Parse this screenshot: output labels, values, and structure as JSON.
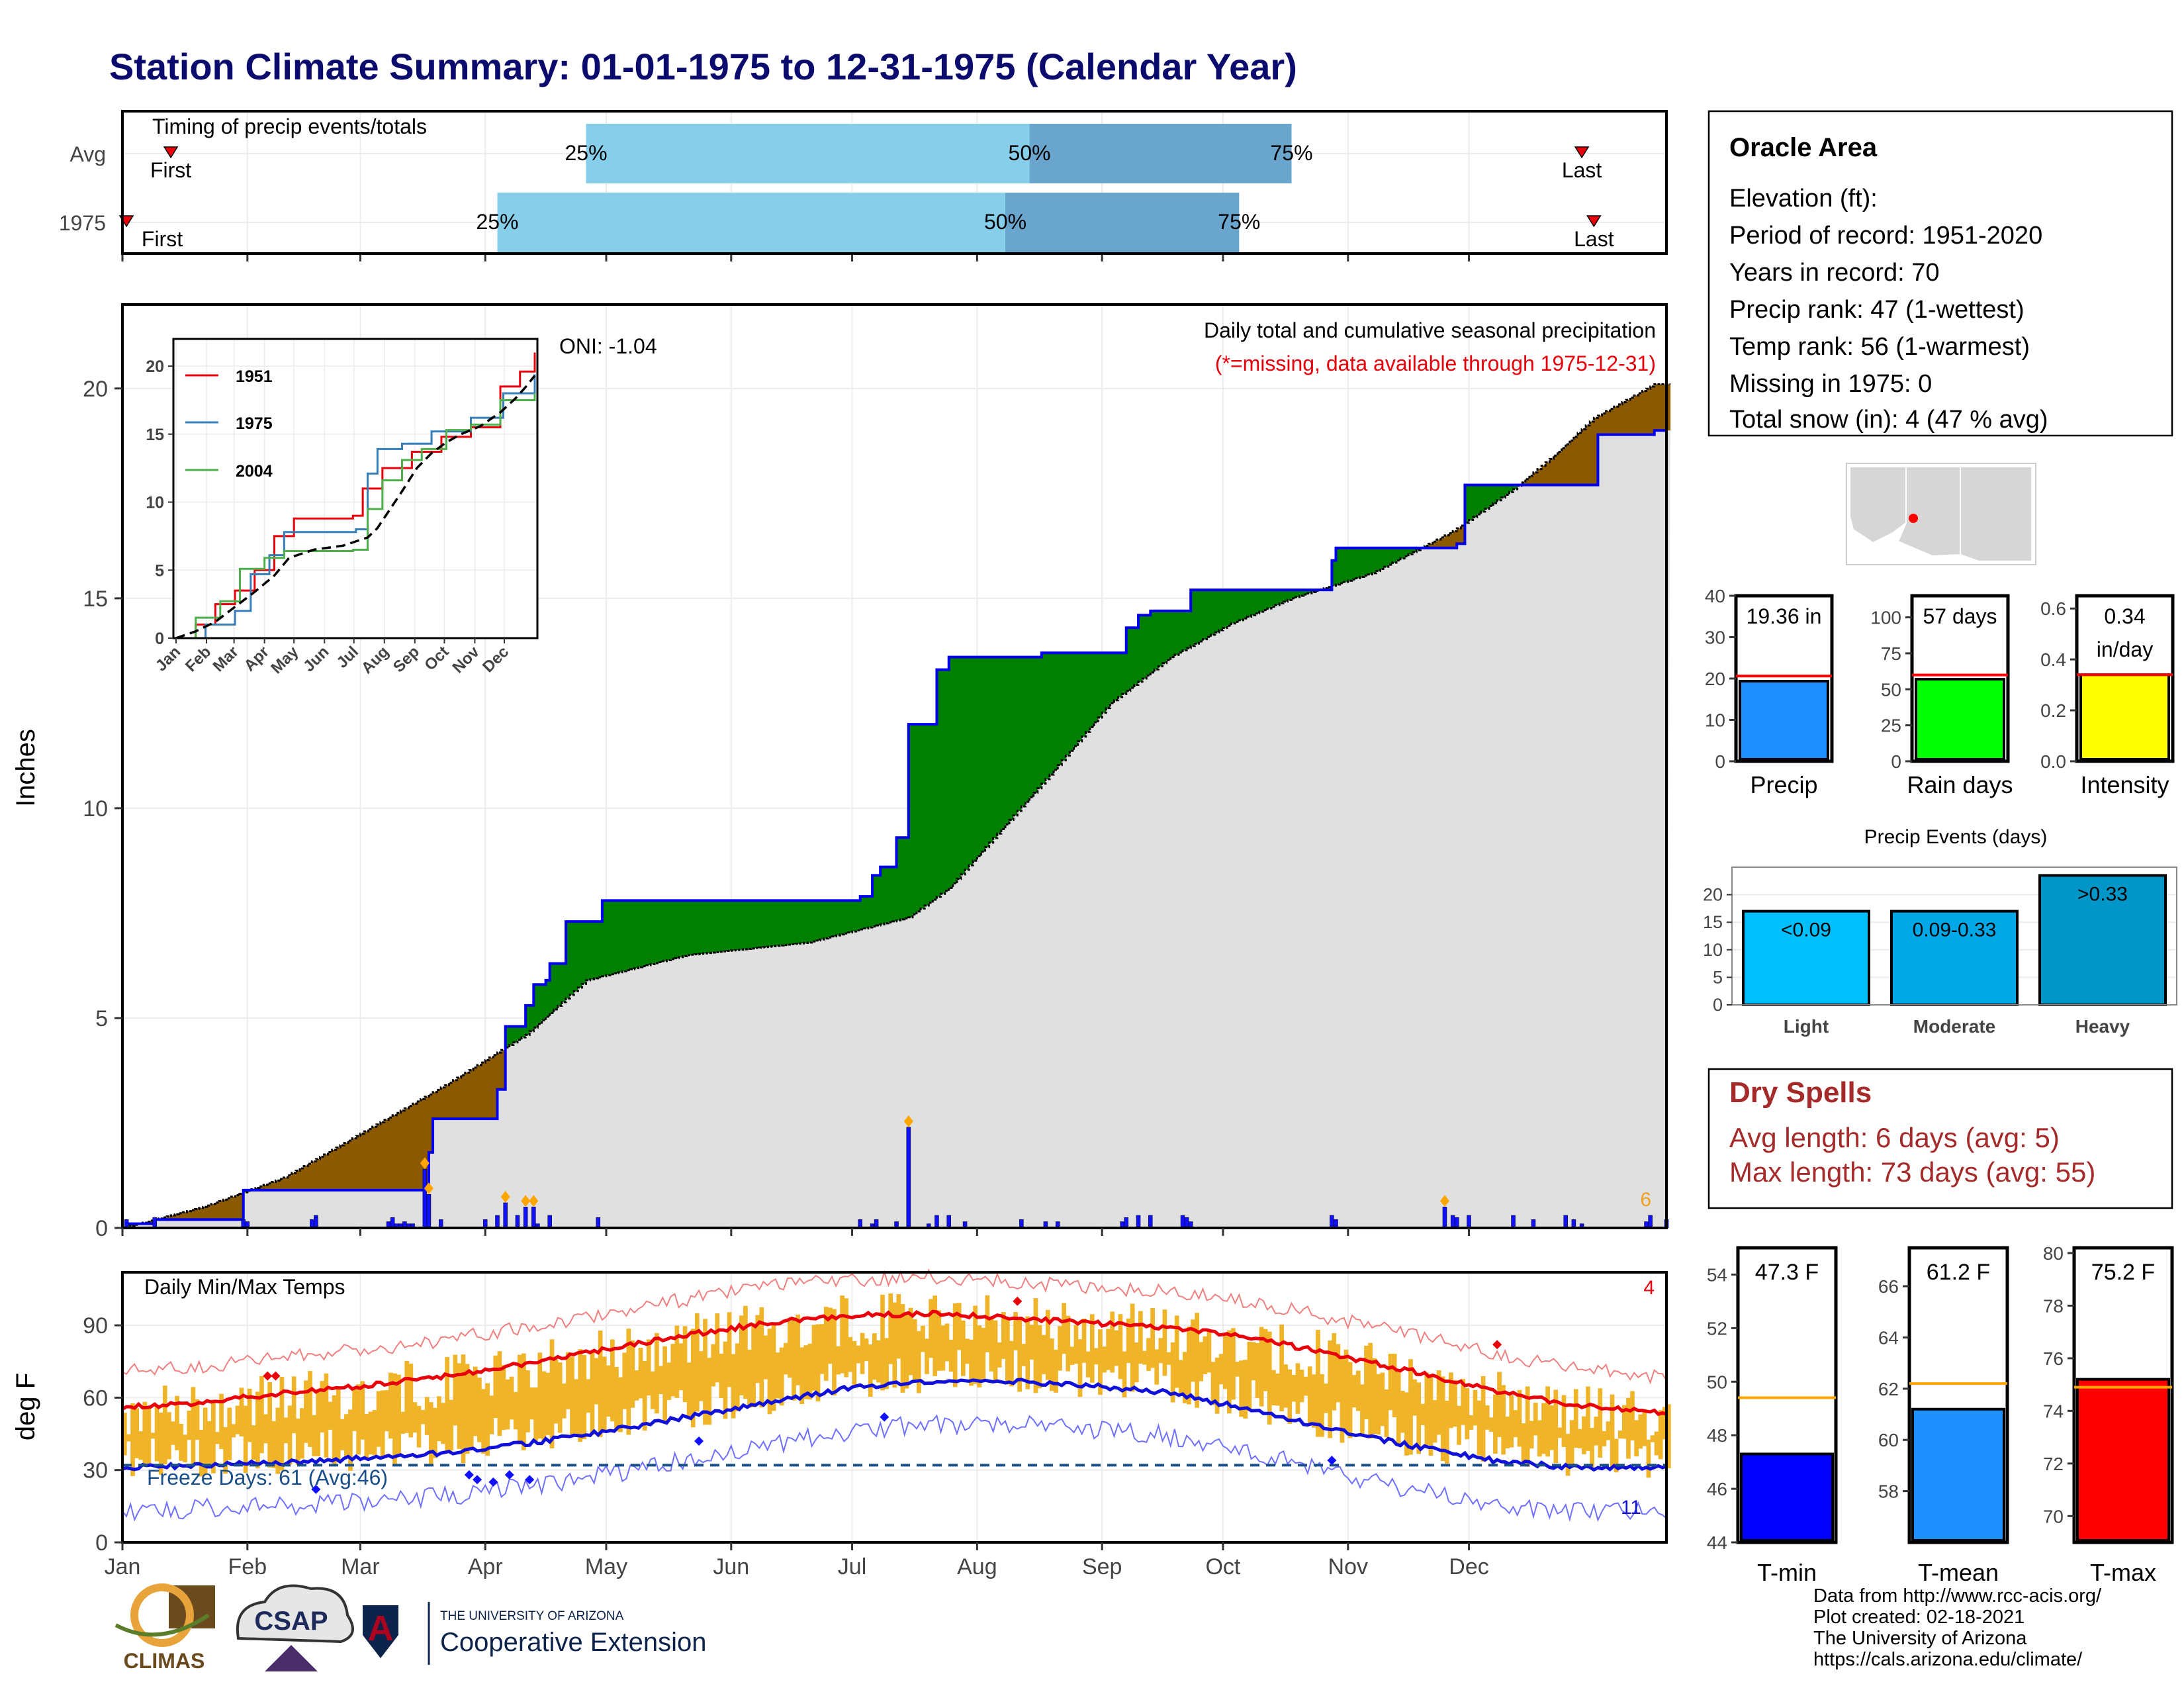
{
  "title": "Station Climate Summary: 01-01-1975 to 12-31-1975 (Calendar Year)",
  "colors": {
    "cumulative_above": "#008000",
    "cumulative_below": "#8b5a00",
    "avg_area": "#e0e0e0",
    "line_1975": "#0000ee",
    "temp_band": "#f0b429",
    "tmax_avg": "#e8000b",
    "tmin_avg": "#1010d8",
    "timing_light": "#87ceeb",
    "timing_dark": "#6aa5cd"
  },
  "timing": {
    "title": "Timing of precip events/totals",
    "rows": [
      {
        "label": "Avg",
        "first_label": "First",
        "last_label": "Last",
        "p25": "25%",
        "p50": "50%",
        "p75": "75%",
        "first_day": 12,
        "p25_day": 115,
        "p50_day": 225,
        "p75_day": 290,
        "last_day": 362
      },
      {
        "label": "1975",
        "first_label": "First",
        "last_label": "Last",
        "p25": "25%",
        "p50": "50%",
        "p75": "75%",
        "first_day": 1,
        "p25_day": 93,
        "p50_day": 219,
        "p75_day": 277,
        "last_day": 365
      }
    ]
  },
  "precip_panel": {
    "ylabel": "Inches",
    "oni": "ONI: -1.04",
    "caption": "Daily total and cumulative seasonal precipitation",
    "missing_note": "(*=missing, data available through 1975-12-31)",
    "corner_count": "6",
    "yticks": [
      "0",
      "5",
      "10",
      "15",
      "20"
    ],
    "ylim": [
      0,
      22
    ]
  },
  "inset": {
    "legend": [
      "1951",
      "1975",
      "2004"
    ],
    "yticks": [
      "0",
      "5",
      "10",
      "15",
      "20"
    ],
    "months": [
      "Jan",
      "Feb",
      "Mar",
      "Apr",
      "May",
      "Jun",
      "Jul",
      "Aug",
      "Sep",
      "Oct",
      "Nov",
      "Dec"
    ]
  },
  "temp_panel": {
    "ylabel": "deg F",
    "title": "Daily Min/Max Temps",
    "freeze": "Freeze Days: 61 (Avg:46)",
    "top_count": "4",
    "bottom_count": "11",
    "yticks": [
      "0",
      "30",
      "60",
      "90"
    ],
    "ylim": [
      0,
      112
    ]
  },
  "months": [
    "Jan",
    "Feb",
    "Mar",
    "Apr",
    "May",
    "Jun",
    "Jul",
    "Aug",
    "Sep",
    "Oct",
    "Nov",
    "Dec"
  ],
  "info": {
    "station": "Oracle Area",
    "lines": [
      "Elevation (ft):",
      "Period of record: 1951-2020",
      "Years in record: 70",
      "Precip rank: 47 (1-wettest)",
      "Temp rank: 56 (1-warmest)",
      "Missing in 1975: 0",
      "Total snow (in): 4 (47 % avg)"
    ]
  },
  "mini_bars": [
    {
      "label": "Precip",
      "value_text": "19.36 in",
      "color": "#1e90ff",
      "value": 19.36,
      "avg": 20.6,
      "ylim": [
        0,
        40
      ],
      "yticks": [
        "0",
        "10",
        "20",
        "30",
        "40"
      ]
    },
    {
      "label": "Rain days",
      "value_text": "57 days",
      "color": "#00ff00",
      "value": 57,
      "avg": 60,
      "ylim": [
        0,
        115
      ],
      "yticks": [
        "0",
        "25",
        "50",
        "75",
        "100"
      ]
    },
    {
      "label": "Intensity",
      "value_text": "0.34",
      "value_text2": "in/day",
      "color": "#ffff00",
      "value": 0.34,
      "avg": 0.34,
      "ylim": [
        0,
        0.65
      ],
      "yticks": [
        "0.0",
        "0.2",
        "0.4",
        "0.6"
      ]
    }
  ],
  "events": {
    "title": "Precip Events (days)",
    "categories": [
      "Light",
      "Moderate",
      "Heavy"
    ],
    "bar_labels": [
      "<0.09",
      "0.09-0.33",
      ">0.33"
    ],
    "values": [
      17,
      17,
      23.5
    ],
    "yticks": [
      "0",
      "5",
      "10",
      "15",
      "20"
    ],
    "ylim": [
      0,
      25
    ],
    "colors": [
      "#00bfff",
      "#00a8e8",
      "#0096c7"
    ]
  },
  "dry_spells": {
    "title": "Dry Spells",
    "avg": "Avg length: 6 days (avg: 5)",
    "max": "Max length: 73 days (avg: 55)"
  },
  "temp_bars": [
    {
      "label": "T-min",
      "value_text": "47.3 F",
      "color": "#0000ff",
      "value": 47.3,
      "avg": 49.4,
      "ylim": [
        44,
        55
      ],
      "yticks": [
        [
          "44",
          44
        ],
        [
          "46",
          46
        ],
        [
          "48",
          48
        ],
        [
          "50",
          50
        ],
        [
          "52",
          52
        ],
        [
          "54",
          54
        ]
      ]
    },
    {
      "label": "T-mean",
      "value_text": "61.2 F",
      "color": "#1e90ff",
      "value": 61.2,
      "avg": 62.2,
      "ylim": [
        56,
        67.5
      ],
      "yticks": [
        [
          "58",
          58
        ],
        [
          "60",
          60
        ],
        [
          "62",
          62
        ],
        [
          "64",
          64
        ],
        [
          "66",
          66
        ]
      ]
    },
    {
      "label": "T-max",
      "value_text": "75.2 F",
      "color": "#ff0000",
      "value": 75.2,
      "avg": 74.9,
      "ylim": [
        69,
        80.2
      ],
      "yticks": [
        [
          "70",
          70
        ],
        [
          "72",
          72
        ],
        [
          "74",
          74
        ],
        [
          "76",
          76
        ],
        [
          "78",
          78
        ],
        [
          "80",
          80
        ]
      ]
    }
  ],
  "footer": {
    "lines": [
      "Data from http://www.rcc-acis.org/",
      "Plot created: 02-18-2021",
      "The University of Arizona",
      "https://cals.arizona.edu/climate/"
    ],
    "logo_climas": "CLIMAS",
    "logo_csap": "CSAP",
    "logo_ua_top": "THE UNIVERSITY OF ARIZONA",
    "logo_ua_main": "Cooperative Extension"
  },
  "chart_data": {
    "type": "area",
    "title": "Daily total and cumulative seasonal precipitation",
    "ylabel": "Inches",
    "ylim": [
      0,
      22
    ],
    "cum_1975_steps": [
      [
        1,
        0.1
      ],
      [
        8,
        0.2
      ],
      [
        30,
        0.9
      ],
      [
        76,
        1.8
      ],
      [
        77,
        2.6
      ],
      [
        90,
        2.6
      ],
      [
        93,
        3.3
      ],
      [
        95,
        4.8
      ],
      [
        100,
        5.3
      ],
      [
        102,
        5.8
      ],
      [
        105,
        5.9
      ],
      [
        106,
        6.3
      ],
      [
        110,
        7.3
      ],
      [
        119,
        7.8
      ],
      [
        183,
        7.9
      ],
      [
        186,
        8.4
      ],
      [
        188,
        8.6
      ],
      [
        192,
        9.3
      ],
      [
        195,
        12.0
      ],
      [
        200,
        12.0
      ],
      [
        202,
        13.3
      ],
      [
        205,
        13.6
      ],
      [
        228,
        13.7
      ],
      [
        232,
        13.7
      ],
      [
        249,
        14.3
      ],
      [
        252,
        14.6
      ],
      [
        255,
        14.7
      ],
      [
        265,
        15.2
      ],
      [
        269,
        15.2
      ],
      [
        300,
        15.9
      ],
      [
        301,
        16.2
      ],
      [
        330,
        16.2
      ],
      [
        331,
        16.3
      ],
      [
        333,
        17.7
      ],
      [
        365,
        17.7
      ],
      [
        366,
        18.9
      ],
      [
        380,
        19.0
      ]
    ],
    "avg_cum_points": [
      [
        0,
        0
      ],
      [
        20,
        0.5
      ],
      [
        40,
        1.2
      ],
      [
        60,
        2.3
      ],
      [
        80,
        3.4
      ],
      [
        100,
        4.6
      ],
      [
        115,
        5.9
      ],
      [
        140,
        6.5
      ],
      [
        170,
        6.8
      ],
      [
        195,
        7.4
      ],
      [
        205,
        8.1
      ],
      [
        230,
        10.8
      ],
      [
        245,
        12.5
      ],
      [
        260,
        13.6
      ],
      [
        275,
        14.4
      ],
      [
        290,
        15.0
      ],
      [
        310,
        15.6
      ],
      [
        330,
        16.6
      ],
      [
        345,
        17.6
      ],
      [
        355,
        18.4
      ],
      [
        365,
        19.3
      ],
      [
        380,
        20.1
      ]
    ],
    "daily_precip": [
      [
        1,
        0.2
      ],
      [
        8,
        0.25
      ],
      [
        30,
        0.2
      ],
      [
        31,
        0.15
      ],
      [
        47,
        0.2
      ],
      [
        48,
        0.3
      ],
      [
        48,
        0.25
      ],
      [
        66,
        0.15
      ],
      [
        67,
        0.25
      ],
      [
        68,
        0.1
      ],
      [
        69,
        0.1
      ],
      [
        70,
        0.15
      ],
      [
        71,
        0.1
      ],
      [
        72,
        0.1
      ],
      [
        75,
        1.4
      ],
      [
        76,
        0.8
      ],
      [
        79,
        0.2
      ],
      [
        90,
        0.2
      ],
      [
        93,
        0.3
      ],
      [
        95,
        0.6
      ],
      [
        98,
        0.3
      ],
      [
        100,
        0.5
      ],
      [
        102,
        0.5
      ],
      [
        103,
        0.1
      ],
      [
        106,
        0.3
      ],
      [
        118,
        0.25
      ],
      [
        183,
        0.2
      ],
      [
        186,
        0.1
      ],
      [
        187,
        0.2
      ],
      [
        192,
        0.15
      ],
      [
        195,
        2.4
      ],
      [
        200,
        0.1
      ],
      [
        202,
        0.3
      ],
      [
        205,
        0.3
      ],
      [
        209,
        0.15
      ],
      [
        223,
        0.2
      ],
      [
        229,
        0.15
      ],
      [
        232,
        0.15
      ],
      [
        248,
        0.15
      ],
      [
        249,
        0.25
      ],
      [
        252,
        0.3
      ],
      [
        255,
        0.3
      ],
      [
        263,
        0.3
      ],
      [
        264,
        0.25
      ],
      [
        265,
        0.15
      ],
      [
        300,
        0.3
      ],
      [
        301,
        0.2
      ],
      [
        328,
        0.5
      ],
      [
        330,
        0.3
      ],
      [
        331,
        0.25
      ],
      [
        334,
        0.3
      ],
      [
        345,
        0.3
      ],
      [
        350,
        0.2
      ],
      [
        358,
        0.3
      ],
      [
        360,
        0.2
      ],
      [
        362,
        0.1
      ],
      [
        378,
        0.15
      ],
      [
        379,
        0.3
      ],
      [
        383,
        0.2
      ]
    ],
    "tmax_avg_points": [
      [
        0,
        56
      ],
      [
        20,
        58
      ],
      [
        40,
        62
      ],
      [
        60,
        65
      ],
      [
        80,
        69
      ],
      [
        100,
        74
      ],
      [
        120,
        80
      ],
      [
        140,
        86
      ],
      [
        160,
        91
      ],
      [
        180,
        94
      ],
      [
        200,
        95
      ],
      [
        220,
        93
      ],
      [
        240,
        91
      ],
      [
        260,
        89
      ],
      [
        280,
        85
      ],
      [
        300,
        78
      ],
      [
        320,
        71
      ],
      [
        340,
        63
      ],
      [
        360,
        57
      ],
      [
        380,
        54
      ]
    ],
    "tmin_avg_points": [
      [
        0,
        31
      ],
      [
        20,
        32
      ],
      [
        40,
        33
      ],
      [
        60,
        35
      ],
      [
        80,
        37
      ],
      [
        100,
        41
      ],
      [
        120,
        46
      ],
      [
        140,
        52
      ],
      [
        160,
        58
      ],
      [
        180,
        64
      ],
      [
        200,
        67
      ],
      [
        220,
        67
      ],
      [
        240,
        65
      ],
      [
        260,
        62
      ],
      [
        280,
        55
      ],
      [
        300,
        47
      ],
      [
        320,
        40
      ],
      [
        340,
        34
      ],
      [
        360,
        31
      ],
      [
        380,
        31
      ]
    ]
  }
}
